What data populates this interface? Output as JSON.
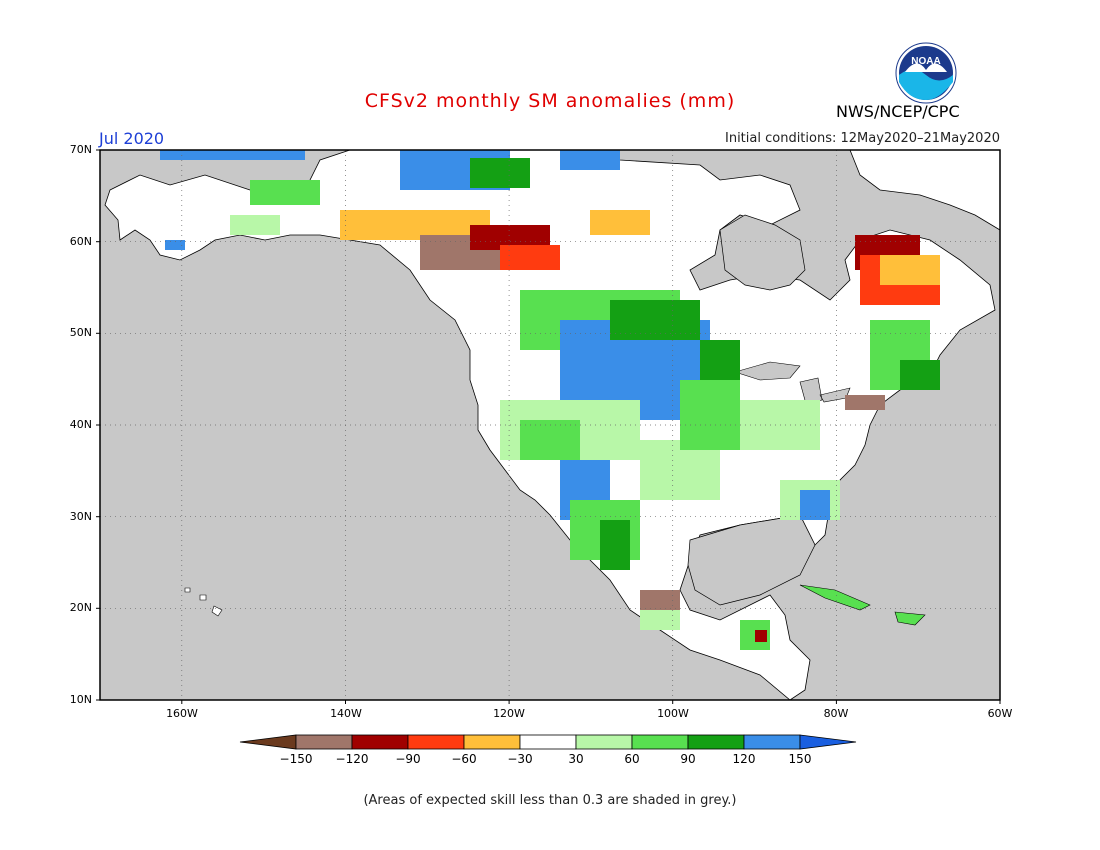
{
  "header": {
    "title": "CFSv2 monthly SM anomalies (mm)",
    "month": "Jul 2020",
    "initial_conditions": "Initial conditions: 12May2020–21May2020",
    "agency": "NWS/NCEP/CPC",
    "logo_text": "NOAA"
  },
  "axes": {
    "lat_labels": [
      "70N",
      "60N",
      "50N",
      "40N",
      "30N",
      "20N",
      "10N"
    ],
    "lon_labels": [
      "160W",
      "140W",
      "120W",
      "100W",
      "80W",
      "60W"
    ]
  },
  "colorbar": {
    "labels": [
      "−150",
      "−120",
      "−90",
      "−60",
      "−30",
      "30",
      "60",
      "90",
      "120",
      "150"
    ],
    "colors": [
      "#6b3a1e",
      "#a0766a",
      "#a00000",
      "#ff3b10",
      "#ffbf3a",
      "#ffffff",
      "#b8f7a8",
      "#58e050",
      "#14a014",
      "#3a8ee8",
      "#1a5fe0"
    ]
  },
  "footer": {
    "skill_note": "(Areas of expected skill less than 0.3 are shaded in grey.)"
  },
  "map_colors": {
    "ocean": "#c8c8c8",
    "land_grey": "#c8c8c8",
    "white": "#ffffff",
    "light_green": "#b8f7a8",
    "green": "#58e050",
    "dark_green": "#14a014",
    "blue": "#3a8ee8",
    "orange": "#ffbf3a",
    "red": "#ff3b10",
    "dark_red": "#a00000",
    "brown": "#a0766a"
  }
}
